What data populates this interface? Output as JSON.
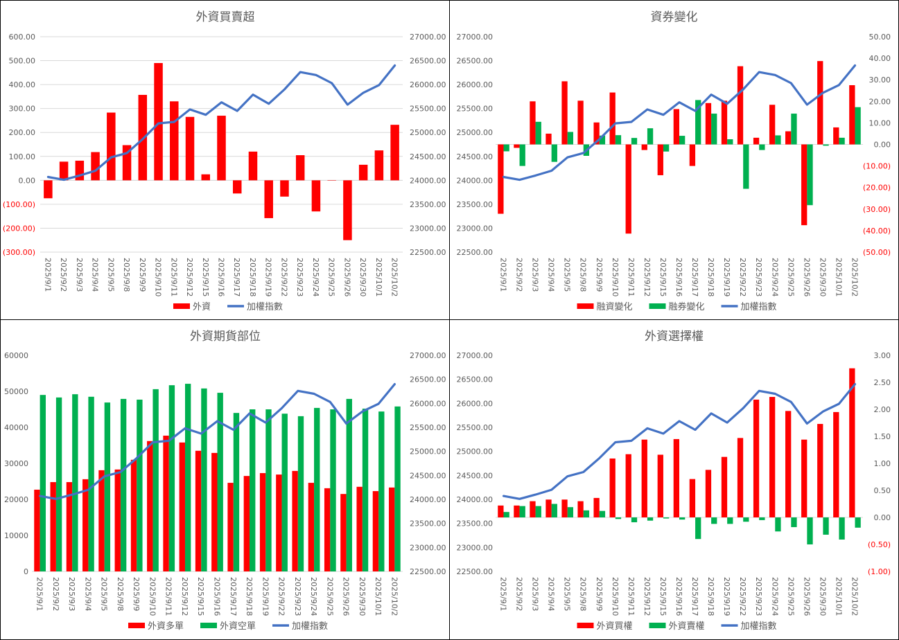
{
  "colors": {
    "red": "#FF0000",
    "green": "#00B050",
    "blue": "#4472C4",
    "negative_tick": "#FF0000",
    "grid": "#D9D9D9"
  },
  "chart_data": [
    {
      "type": "bar+line",
      "title": "外資買賣超",
      "categories": [
        "2025/9/1",
        "2025/9/2",
        "2025/9/3",
        "2025/9/4",
        "2025/9/5",
        "2025/9/8",
        "2025/9/9",
        "2025/9/10",
        "2025/9/11",
        "2025/9/12",
        "2025/9/15",
        "2025/9/16",
        "2025/9/17",
        "2025/9/18",
        "2025/9/19",
        "2025/9/22",
        "2025/9/23",
        "2025/9/24",
        "2025/9/25",
        "2025/9/26",
        "2025/9/30",
        "2025/10/1",
        "2025/10/2"
      ],
      "grid": true,
      "legend": "bottom",
      "left_axis": {
        "min": -300,
        "max": 600,
        "ticks": [
          "600.00",
          "500.00",
          "400.00",
          "300.00",
          "200.00",
          "100.00",
          "0.00",
          "(100.00)",
          "(200.00)",
          "(300.00)"
        ]
      },
      "right_axis": {
        "min": 22500,
        "max": 27000,
        "ticks": [
          "27000.00",
          "26500.00",
          "26000.00",
          "25500.00",
          "25000.00",
          "24500.00",
          "24000.00",
          "23500.00",
          "23000.00",
          "22500.00"
        ]
      },
      "series": [
        {
          "name": "外資",
          "type": "bar",
          "axis": "left",
          "color": "#FF0000",
          "values": [
            -75,
            78,
            82,
            118,
            283,
            147,
            357,
            490,
            330,
            265,
            25,
            270,
            -55,
            120,
            -158,
            -68,
            105,
            -130,
            0,
            -250,
            65,
            125,
            232
          ]
        },
        {
          "name": "加權指數",
          "type": "line",
          "axis": "right",
          "color": "#4472C4",
          "values": [
            24070,
            24010,
            24100,
            24200,
            24480,
            24570,
            24860,
            25190,
            25220,
            25480,
            25370,
            25630,
            25450,
            25790,
            25600,
            25900,
            26260,
            26200,
            26030,
            25580,
            25830,
            25990,
            26400
          ]
        }
      ]
    },
    {
      "type": "bar+line",
      "title": "資券變化",
      "categories": [
        "2025/9/1",
        "2025/9/2",
        "2025/9/3",
        "2025/9/4",
        "2025/9/5",
        "2025/9/8",
        "2025/9/9",
        "2025/9/10",
        "2025/9/11",
        "2025/9/12",
        "2025/9/15",
        "2025/9/16",
        "2025/9/17",
        "2025/9/18",
        "2025/9/19",
        "2025/9/22",
        "2025/9/23",
        "2025/9/24",
        "2025/9/25",
        "2025/9/26",
        "2025/9/30",
        "2025/10/1",
        "2025/10/2"
      ],
      "grid": false,
      "legend": "bottom",
      "left_axis": {
        "min": 22500,
        "max": 27000,
        "ticks": [
          "27000.00",
          "26500.00",
          "26000.00",
          "25500.00",
          "25000.00",
          "24500.00",
          "24000.00",
          "23500.00",
          "23000.00",
          "22500.00"
        ]
      },
      "right_axis": {
        "min": -50,
        "max": 50,
        "ticks": [
          "50.00",
          "40.00",
          "30.00",
          "20.00",
          "10.00",
          "0.00",
          "(10.00)",
          "(20.00)",
          "(30.00)",
          "(40.00)",
          "(50.00)"
        ]
      },
      "series": [
        {
          "name": "融資變化",
          "type": "bar",
          "axis": "right",
          "color": "#FF0000",
          "values": [
            -32.2,
            -1.6,
            20,
            5,
            29.3,
            20.3,
            10.2,
            24.1,
            -41.4,
            -2.6,
            -14.3,
            16.4,
            -10,
            19.2,
            20.3,
            36.3,
            3.1,
            18.4,
            6.1,
            -37.5,
            38.7,
            7.9,
            27.5
          ]
        },
        {
          "name": "融券變化",
          "type": "bar",
          "axis": "right",
          "color": "#00B050",
          "values": [
            -3.2,
            -10,
            10.5,
            -8.1,
            5.8,
            -5.3,
            4.1,
            4.3,
            3,
            7.5,
            -3.3,
            4,
            20.6,
            14.3,
            2.4,
            -20.6,
            -2.6,
            4.2,
            14.3,
            -28.2,
            -0.6,
            3.1,
            17.3
          ]
        },
        {
          "name": "加權指數",
          "type": "line",
          "axis": "left",
          "color": "#4472C4",
          "values": [
            24070,
            24010,
            24100,
            24200,
            24480,
            24570,
            24860,
            25190,
            25220,
            25480,
            25370,
            25630,
            25450,
            25790,
            25600,
            25900,
            26260,
            26200,
            26030,
            25580,
            25830,
            25990,
            26400
          ]
        }
      ]
    },
    {
      "type": "bar+line",
      "title": "外資期貨部位",
      "categories": [
        "2025/9/1",
        "2025/9/2",
        "2025/9/3",
        "2025/9/4",
        "2025/9/5",
        "2025/9/8",
        "2025/9/9",
        "2025/9/10",
        "2025/9/11",
        "2025/9/12",
        "2025/9/15",
        "2025/9/16",
        "2025/9/17",
        "2025/9/18",
        "2025/9/19",
        "2025/9/22",
        "2025/9/23",
        "2025/9/24",
        "2025/9/25",
        "2025/9/26",
        "2025/9/30",
        "2025/10/1",
        "2025/10/2"
      ],
      "grid": false,
      "legend": "bottom",
      "left_axis": {
        "min": 0,
        "max": 60000,
        "ticks": [
          "60000",
          "50000",
          "40000",
          "30000",
          "20000",
          "10000",
          "0"
        ]
      },
      "right_axis": {
        "min": 22500,
        "max": 27000,
        "ticks": [
          "27000.00",
          "26500.00",
          "26000.00",
          "25500.00",
          "25000.00",
          "24500.00",
          "24000.00",
          "23500.00",
          "23000.00",
          "22500.00"
        ]
      },
      "series": [
        {
          "name": "外資多單",
          "type": "bar",
          "axis": "left",
          "color": "#FF0000",
          "values": [
            22700,
            24800,
            24800,
            25600,
            28100,
            28300,
            31000,
            36200,
            37700,
            35800,
            33500,
            32900,
            24600,
            26500,
            27300,
            26900,
            27900,
            24600,
            23100,
            21500,
            23500,
            22300,
            23300
          ]
        },
        {
          "name": "外資空單",
          "type": "bar",
          "axis": "left",
          "color": "#00B050",
          "values": [
            49000,
            48300,
            49200,
            48500,
            46900,
            47900,
            47700,
            50600,
            51700,
            52100,
            50800,
            49600,
            44000,
            45000,
            45000,
            43800,
            43100,
            45400,
            45000,
            47900,
            45200,
            44400,
            45800
          ]
        },
        {
          "name": "加權指數",
          "type": "line",
          "axis": "right",
          "color": "#4472C4",
          "values": [
            24070,
            24010,
            24100,
            24200,
            24480,
            24570,
            24860,
            25190,
            25220,
            25480,
            25370,
            25630,
            25450,
            25790,
            25600,
            25900,
            26260,
            26200,
            26030,
            25580,
            25830,
            25990,
            26400
          ]
        }
      ]
    },
    {
      "type": "bar+line",
      "title": "外資選擇權",
      "categories": [
        "2025/9/1",
        "2025/9/2",
        "2025/9/3",
        "2025/9/4",
        "2025/9/5",
        "2025/9/8",
        "2025/9/9",
        "2025/9/10",
        "2025/9/11",
        "2025/9/12",
        "2025/9/15",
        "2025/9/16",
        "2025/9/17",
        "2025/9/18",
        "2025/9/19",
        "2025/9/22",
        "2025/9/23",
        "2025/9/24",
        "2025/9/25",
        "2025/9/26",
        "2025/9/30",
        "2025/10/1",
        "2025/10/2"
      ],
      "grid": false,
      "legend": "bottom",
      "left_axis": {
        "min": 22500,
        "max": 27000,
        "ticks": [
          "27000.00",
          "26500.00",
          "26000.00",
          "25500.00",
          "25000.00",
          "24500.00",
          "24000.00",
          "23500.00",
          "23000.00",
          "22500.00"
        ]
      },
      "right_axis": {
        "min": -1,
        "max": 3,
        "ticks": [
          "3.00",
          "2.50",
          "2.00",
          "1.50",
          "1.00",
          "0.50",
          "0.00",
          "(0.50)",
          "(1.00)"
        ]
      },
      "series": [
        {
          "name": "外資買權",
          "type": "bar",
          "axis": "right",
          "color": "#FF0000",
          "values": [
            0.22,
            0.22,
            0.3,
            0.33,
            0.33,
            0.3,
            0.36,
            1.09,
            1.17,
            1.44,
            1.16,
            1.45,
            0.71,
            0.88,
            1.12,
            1.47,
            2.18,
            2.23,
            1.97,
            1.44,
            1.73,
            1.95,
            2.76
          ]
        },
        {
          "name": "外資賣權",
          "type": "bar",
          "axis": "right",
          "color": "#00B050",
          "values": [
            0.1,
            0.21,
            0.21,
            0.25,
            0.19,
            0.13,
            0.12,
            -0.03,
            -0.09,
            -0.06,
            -0.02,
            -0.04,
            -0.4,
            -0.12,
            -0.12,
            -0.08,
            -0.05,
            -0.26,
            -0.18,
            -0.5,
            -0.32,
            -0.41,
            -0.19
          ]
        },
        {
          "name": "加權指數",
          "type": "line",
          "axis": "left",
          "color": "#4472C4",
          "values": [
            24070,
            24010,
            24100,
            24200,
            24480,
            24570,
            24860,
            25190,
            25220,
            25480,
            25370,
            25630,
            25450,
            25790,
            25600,
            25900,
            26260,
            26200,
            26030,
            25580,
            25830,
            25990,
            26400
          ]
        }
      ]
    }
  ]
}
